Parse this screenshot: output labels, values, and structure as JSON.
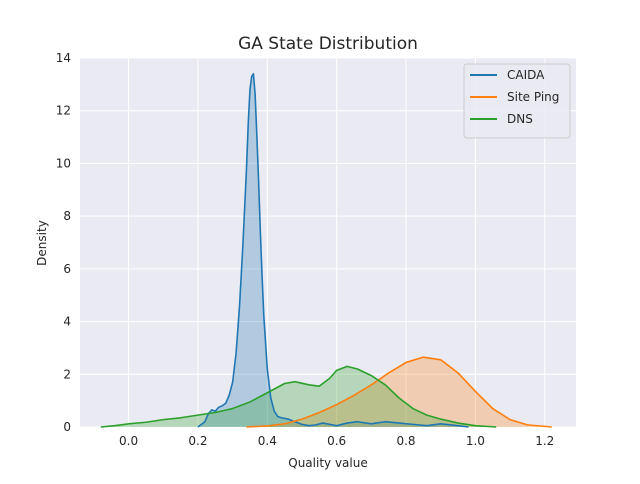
{
  "chart_data": {
    "type": "area",
    "title": "GA State Distribution",
    "xlabel": "Quality value",
    "ylabel": "Density",
    "xlim": [
      -0.14,
      1.29
    ],
    "ylim": [
      0,
      14
    ],
    "xticks": [
      "0.0",
      "0.2",
      "0.4",
      "0.6",
      "0.8",
      "1.0",
      "1.2"
    ],
    "yticks": [
      "0",
      "2",
      "4",
      "6",
      "8",
      "10",
      "12",
      "14"
    ],
    "grid": true,
    "legend_position": "top-right",
    "background": "#eaeaf2",
    "series": [
      {
        "name": "CAIDA",
        "color": "#1f77b4",
        "x": [
          0.2,
          0.22,
          0.23,
          0.24,
          0.25,
          0.26,
          0.27,
          0.28,
          0.29,
          0.3,
          0.31,
          0.32,
          0.33,
          0.34,
          0.345,
          0.35,
          0.355,
          0.36,
          0.365,
          0.37,
          0.375,
          0.38,
          0.385,
          0.39,
          0.4,
          0.41,
          0.42,
          0.43,
          0.44,
          0.46,
          0.48,
          0.5,
          0.52,
          0.54,
          0.56,
          0.58,
          0.6,
          0.63,
          0.66,
          0.7,
          0.74,
          0.78,
          0.82,
          0.86,
          0.9,
          0.95,
          0.98
        ],
        "y": [
          0.0,
          0.2,
          0.5,
          0.65,
          0.6,
          0.75,
          0.8,
          0.9,
          1.2,
          1.7,
          2.8,
          4.6,
          7.0,
          9.8,
          11.5,
          12.8,
          13.3,
          13.4,
          12.6,
          11.0,
          9.3,
          7.4,
          5.7,
          4.2,
          2.2,
          1.1,
          0.6,
          0.4,
          0.35,
          0.3,
          0.2,
          0.1,
          0.05,
          0.08,
          0.15,
          0.1,
          0.05,
          0.15,
          0.2,
          0.12,
          0.2,
          0.15,
          0.1,
          0.05,
          0.12,
          0.05,
          0.0
        ]
      },
      {
        "name": "Site Ping",
        "color": "#ff7f0e",
        "x": [
          0.34,
          0.4,
          0.45,
          0.5,
          0.55,
          0.6,
          0.65,
          0.7,
          0.75,
          0.8,
          0.85,
          0.9,
          0.95,
          1.0,
          1.05,
          1.1,
          1.15,
          1.22
        ],
        "y": [
          0.0,
          0.04,
          0.12,
          0.3,
          0.55,
          0.85,
          1.2,
          1.6,
          2.05,
          2.45,
          2.65,
          2.55,
          2.05,
          1.35,
          0.7,
          0.28,
          0.08,
          0.0
        ]
      },
      {
        "name": "DNS",
        "color": "#2ca02c",
        "x": [
          -0.08,
          -0.04,
          0.0,
          0.05,
          0.1,
          0.15,
          0.2,
          0.25,
          0.3,
          0.35,
          0.4,
          0.45,
          0.48,
          0.52,
          0.55,
          0.58,
          0.6,
          0.63,
          0.66,
          0.7,
          0.74,
          0.78,
          0.82,
          0.86,
          0.9,
          0.95,
          1.0,
          1.06
        ],
        "y": [
          0.0,
          0.05,
          0.12,
          0.18,
          0.28,
          0.35,
          0.45,
          0.55,
          0.7,
          0.95,
          1.3,
          1.65,
          1.72,
          1.6,
          1.55,
          1.85,
          2.15,
          2.3,
          2.2,
          1.95,
          1.6,
          1.1,
          0.7,
          0.45,
          0.3,
          0.15,
          0.05,
          0.0
        ]
      }
    ]
  }
}
